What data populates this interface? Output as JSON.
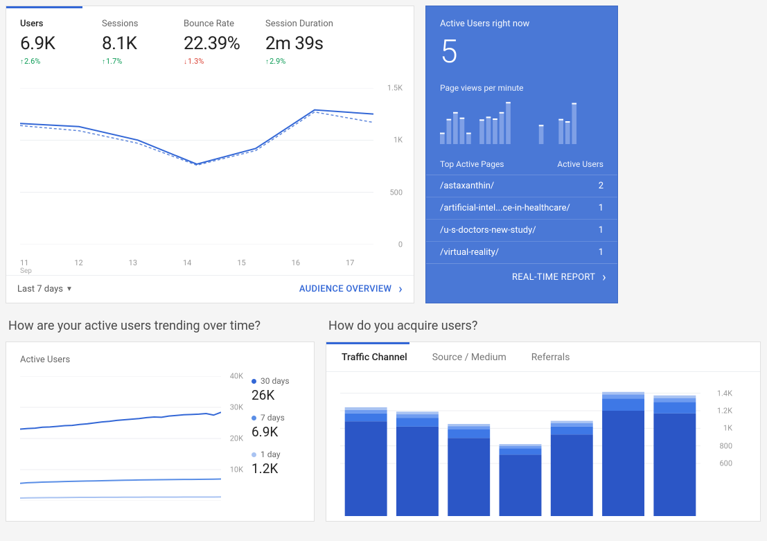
{
  "colors": {
    "accent": "#3367d6",
    "accent_light": "#5c85db",
    "success": "#0f9d58",
    "danger": "#db4437",
    "blue_card": "#4a78d6",
    "spark_bar": "#7fa0e6",
    "grid": "#eceef1",
    "text_muted": "#999999"
  },
  "metrics_card": {
    "metrics": [
      {
        "label": "Users",
        "value": "6.9K",
        "delta": "2.6%",
        "direction": "up",
        "active": true
      },
      {
        "label": "Sessions",
        "value": "8.1K",
        "delta": "1.7%",
        "direction": "up",
        "active": false
      },
      {
        "label": "Bounce Rate",
        "value": "22.39%",
        "delta": "1.3%",
        "direction": "down",
        "active": false
      },
      {
        "label": "Session Duration",
        "value": "2m 39s",
        "delta": "2.9%",
        "direction": "up",
        "active": false
      }
    ],
    "chart": {
      "type": "line",
      "ylim": [
        0,
        1500
      ],
      "yticks": [
        0,
        500,
        1000,
        1500
      ],
      "ytick_labels": [
        "0",
        "500",
        "1K",
        "1.5K"
      ],
      "x_labels": [
        "11",
        "12",
        "13",
        "14",
        "15",
        "16",
        "17"
      ],
      "x_sublabel_first": "Sep",
      "series_a": [
        1160,
        1130,
        1000,
        770,
        920,
        1290,
        1250
      ],
      "series_b": [
        1140,
        1090,
        970,
        760,
        900,
        1270,
        1170
      ],
      "series_a_color": "#3367d6",
      "series_b_color": "#5c85db",
      "series_b_dash": "4 3"
    },
    "footer_left": "Last 7 days",
    "footer_right": "AUDIENCE OVERVIEW"
  },
  "realtime": {
    "title": "Active Users right now",
    "count": "5",
    "subtitle": "Page views per minute",
    "sparkbars": {
      "max": 100,
      "values": [
        25,
        55,
        70,
        58,
        25,
        0,
        54,
        60,
        56,
        70,
        92,
        0,
        0,
        0,
        0,
        42,
        0,
        0,
        55,
        50,
        90,
        0,
        0,
        0,
        0
      ]
    },
    "table": {
      "head_left": "Top Active Pages",
      "head_right": "Active Users",
      "rows": [
        {
          "path": "/astaxanthin/",
          "count": "2"
        },
        {
          "path": "/artificial-intel...ce-in-healthcare/",
          "count": "1"
        },
        {
          "path": "/u-s-doctors-new-study/",
          "count": "1"
        },
        {
          "path": "/virtual-reality/",
          "count": "1"
        }
      ]
    },
    "footer": "REAL-TIME REPORT"
  },
  "section_trending": "How are your active users trending over time?",
  "section_acquire": "How do you acquire users?",
  "trend_card": {
    "title": "Active Users",
    "chart": {
      "type": "line",
      "ylim": [
        0,
        40000
      ],
      "yticks": [
        0,
        10000,
        20000,
        30000,
        40000
      ],
      "ytick_labels": [
        "",
        "10K",
        "20K",
        "30K",
        "40K"
      ],
      "series": [
        {
          "key": "30d",
          "color": "#3367d6",
          "values": [
            23000,
            23200,
            23300,
            23600,
            23700,
            23900,
            24100,
            24200,
            24500,
            24700,
            25000,
            25300,
            25500,
            25800,
            26000,
            26200,
            26400,
            26700,
            26900,
            26800,
            27200,
            27400,
            27600,
            27700,
            27800,
            28000,
            27500,
            28400
          ]
        },
        {
          "key": "7d",
          "color": "#5a8ee6",
          "values": [
            5600,
            5800,
            5900,
            6000,
            6050,
            6100,
            6200,
            6250,
            6300,
            6350,
            6400,
            6450,
            6500,
            6550,
            6600,
            6650,
            6700,
            6720,
            6750,
            6780,
            6800,
            6820,
            6850,
            6870,
            6900,
            6920,
            6940,
            7000
          ]
        },
        {
          "key": "1d",
          "color": "#a9c3f2",
          "values": [
            900,
            950,
            980,
            1000,
            1020,
            1040,
            1060,
            1080,
            1100,
            1110,
            1120,
            1130,
            1140,
            1150,
            1160,
            1170,
            1180,
            1185,
            1190,
            1195,
            1200,
            1205,
            1210,
            1215,
            1220,
            1225,
            1230,
            1240
          ]
        }
      ]
    },
    "legend": [
      {
        "label": "30 days",
        "value": "26K",
        "color": "#3367d6"
      },
      {
        "label": "7 days",
        "value": "6.9K",
        "color": "#5a8ee6"
      },
      {
        "label": "1 day",
        "value": "1.2K",
        "color": "#a9c3f2"
      }
    ]
  },
  "acquire_card": {
    "tabs": [
      "Traffic Channel",
      "Source / Medium",
      "Referrals"
    ],
    "active_tab": 0,
    "chart": {
      "type": "stacked-bar",
      "ylim": [
        500,
        1500
      ],
      "yticks": [
        600,
        800,
        1000,
        1200,
        1400
      ],
      "ytick_labels": [
        "600",
        "800",
        "1K",
        "1.2K",
        "1.4K"
      ],
      "colors": [
        "#2b56c6",
        "#3e78e6",
        "#6f9cf0",
        "#a9c3f2"
      ],
      "bars": [
        [
          1080,
          90,
          40,
          30
        ],
        [
          1020,
          100,
          40,
          30
        ],
        [
          890,
          100,
          35,
          25
        ],
        [
          700,
          70,
          30,
          20
        ],
        [
          930,
          90,
          40,
          25
        ],
        [
          1200,
          140,
          45,
          30
        ],
        [
          1170,
          130,
          45,
          30
        ]
      ],
      "bar_width": 0.82
    }
  }
}
